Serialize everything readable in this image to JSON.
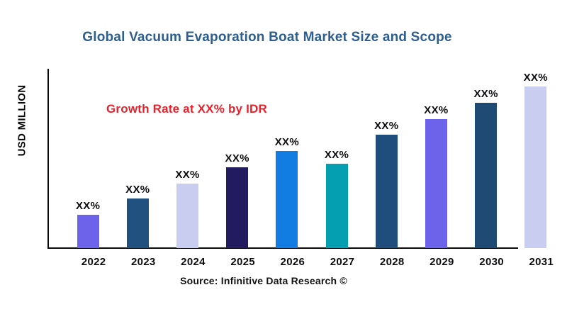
{
  "page": {
    "title": "Global Vacuum Evaporation Boat  Market Size and Scope",
    "title_color": "#2D5E8D",
    "background": "#FFFFFF"
  },
  "annotation": {
    "text": "Growth Rate at XX% by IDR",
    "color": "#E8212A"
  },
  "source": {
    "text": "Source: Infinitive Data Research ©"
  },
  "chart_data": {
    "type": "bar",
    "title": "Global Vacuum Evaporation Boat  Market Size and Scope",
    "xlabel": "",
    "ylabel": "USD MILLION",
    "categories": [
      "2022",
      "2023",
      "2024",
      "2025",
      "2026",
      "2027",
      "2028",
      "2029",
      "2030",
      "2031"
    ],
    "values_relative": [
      47,
      70,
      91,
      114,
      137,
      119,
      160,
      182,
      205,
      228
    ],
    "value_labels": [
      "XX%",
      "XX%",
      "XX%",
      "XX%",
      "XX%",
      "XX%",
      "XX%",
      "XX%",
      "XX%",
      "XX%"
    ],
    "bar_colors": [
      "#6C63EA",
      "#21527F",
      "#C9CDEF",
      "#221B60",
      "#117DE2",
      "#04A0B2",
      "#1F4E7C",
      "#6C63EA",
      "#1F4A74",
      "#C9CDEF"
    ],
    "annotation": "Growth Rate at XX% by IDR",
    "legend_position": "none",
    "grid": false,
    "y_axis_tick_labels": [],
    "axis_color": "#0A0A0A"
  }
}
